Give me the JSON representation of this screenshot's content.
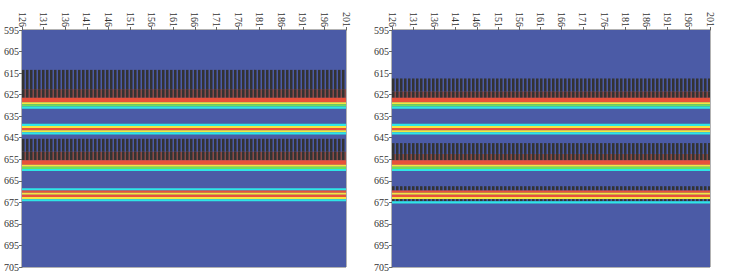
{
  "chart_data": [
    {
      "type": "heatmap",
      "xlim": [
        126,
        201
      ],
      "ylim": [
        595,
        705
      ],
      "xticks": [
        126,
        131,
        136,
        141,
        146,
        151,
        156,
        161,
        166,
        171,
        176,
        181,
        186,
        191,
        196,
        201
      ],
      "yticks": [
        595,
        605,
        615,
        625,
        635,
        645,
        655,
        665,
        675,
        685,
        695,
        705
      ],
      "background": 0,
      "value_range": [
        0,
        6
      ],
      "bands": [
        {
          "y": [
            614,
            622
          ],
          "value": 6,
          "alt_value": 0
        },
        {
          "y": [
            623,
            626
          ],
          "value": 6,
          "alt_value": 5
        },
        {
          "y": [
            627,
            628
          ],
          "value": 4
        },
        {
          "y": [
            629,
            629
          ],
          "value": 3
        },
        {
          "y": [
            630,
            630
          ],
          "value": 2
        },
        {
          "y": [
            631,
            631
          ],
          "value": 1
        },
        {
          "y": [
            639,
            639
          ],
          "value": 1
        },
        {
          "y": [
            640,
            640
          ],
          "value": 3
        },
        {
          "y": [
            641,
            641
          ],
          "value": 4
        },
        {
          "y": [
            642,
            642
          ],
          "value": 3
        },
        {
          "y": [
            643,
            643
          ],
          "value": 1
        },
        {
          "y": [
            646,
            651
          ],
          "value": 6,
          "alt_value": 0
        },
        {
          "y": [
            652,
            655
          ],
          "value": 6,
          "alt_value": 5
        },
        {
          "y": [
            656,
            657
          ],
          "value": 4
        },
        {
          "y": [
            658,
            658
          ],
          "value": 3
        },
        {
          "y": [
            659,
            659
          ],
          "value": 2
        },
        {
          "y": [
            660,
            660
          ],
          "value": 1
        },
        {
          "y": [
            669,
            669
          ],
          "value": 1
        },
        {
          "y": [
            670,
            670
          ],
          "value": 4
        },
        {
          "y": [
            671,
            671
          ],
          "value": 3
        },
        {
          "y": [
            672,
            672
          ],
          "value": 4
        },
        {
          "y": [
            673,
            673
          ],
          "value": 3
        },
        {
          "y": [
            674,
            674
          ],
          "value": 1
        }
      ]
    },
    {
      "type": "heatmap",
      "xlim": [
        126,
        201
      ],
      "ylim": [
        595,
        705
      ],
      "xticks": [
        126,
        131,
        136,
        141,
        146,
        151,
        156,
        161,
        166,
        171,
        176,
        181,
        186,
        191,
        196,
        201
      ],
      "yticks": [
        595,
        605,
        615,
        625,
        635,
        645,
        655,
        665,
        675,
        685,
        695,
        705
      ],
      "background": 0,
      "value_range": [
        0,
        6
      ],
      "bands": [
        {
          "y": [
            618,
            623
          ],
          "value": 6,
          "alt_value": 0
        },
        {
          "y": [
            624,
            626
          ],
          "value": 6,
          "alt_value": 5
        },
        {
          "y": [
            627,
            628
          ],
          "value": 4
        },
        {
          "y": [
            629,
            629
          ],
          "value": 3
        },
        {
          "y": [
            630,
            630
          ],
          "value": 2
        },
        {
          "y": [
            631,
            631
          ],
          "value": 1
        },
        {
          "y": [
            639,
            639
          ],
          "value": 1
        },
        {
          "y": [
            640,
            640
          ],
          "value": 3
        },
        {
          "y": [
            641,
            641
          ],
          "value": 4
        },
        {
          "y": [
            642,
            642
          ],
          "value": 3
        },
        {
          "y": [
            643,
            643
          ],
          "value": 1
        },
        {
          "y": [
            648,
            652
          ],
          "value": 6,
          "alt_value": 0
        },
        {
          "y": [
            653,
            655
          ],
          "value": 6,
          "alt_value": 5
        },
        {
          "y": [
            656,
            657
          ],
          "value": 4
        },
        {
          "y": [
            658,
            658
          ],
          "value": 3
        },
        {
          "y": [
            659,
            659
          ],
          "value": 2
        },
        {
          "y": [
            660,
            660
          ],
          "value": 1
        },
        {
          "y": [
            668,
            669
          ],
          "value": 6,
          "alt_value": 0
        },
        {
          "y": [
            670,
            670
          ],
          "value": 4
        },
        {
          "y": [
            671,
            671
          ],
          "value": 3
        },
        {
          "y": [
            672,
            672
          ],
          "value": 4
        },
        {
          "y": [
            673,
            673
          ],
          "value": 3
        },
        {
          "y": [
            674,
            674
          ],
          "value": 6,
          "alt_value": 0
        },
        {
          "y": [
            675,
            675
          ],
          "value": 1
        }
      ]
    }
  ]
}
